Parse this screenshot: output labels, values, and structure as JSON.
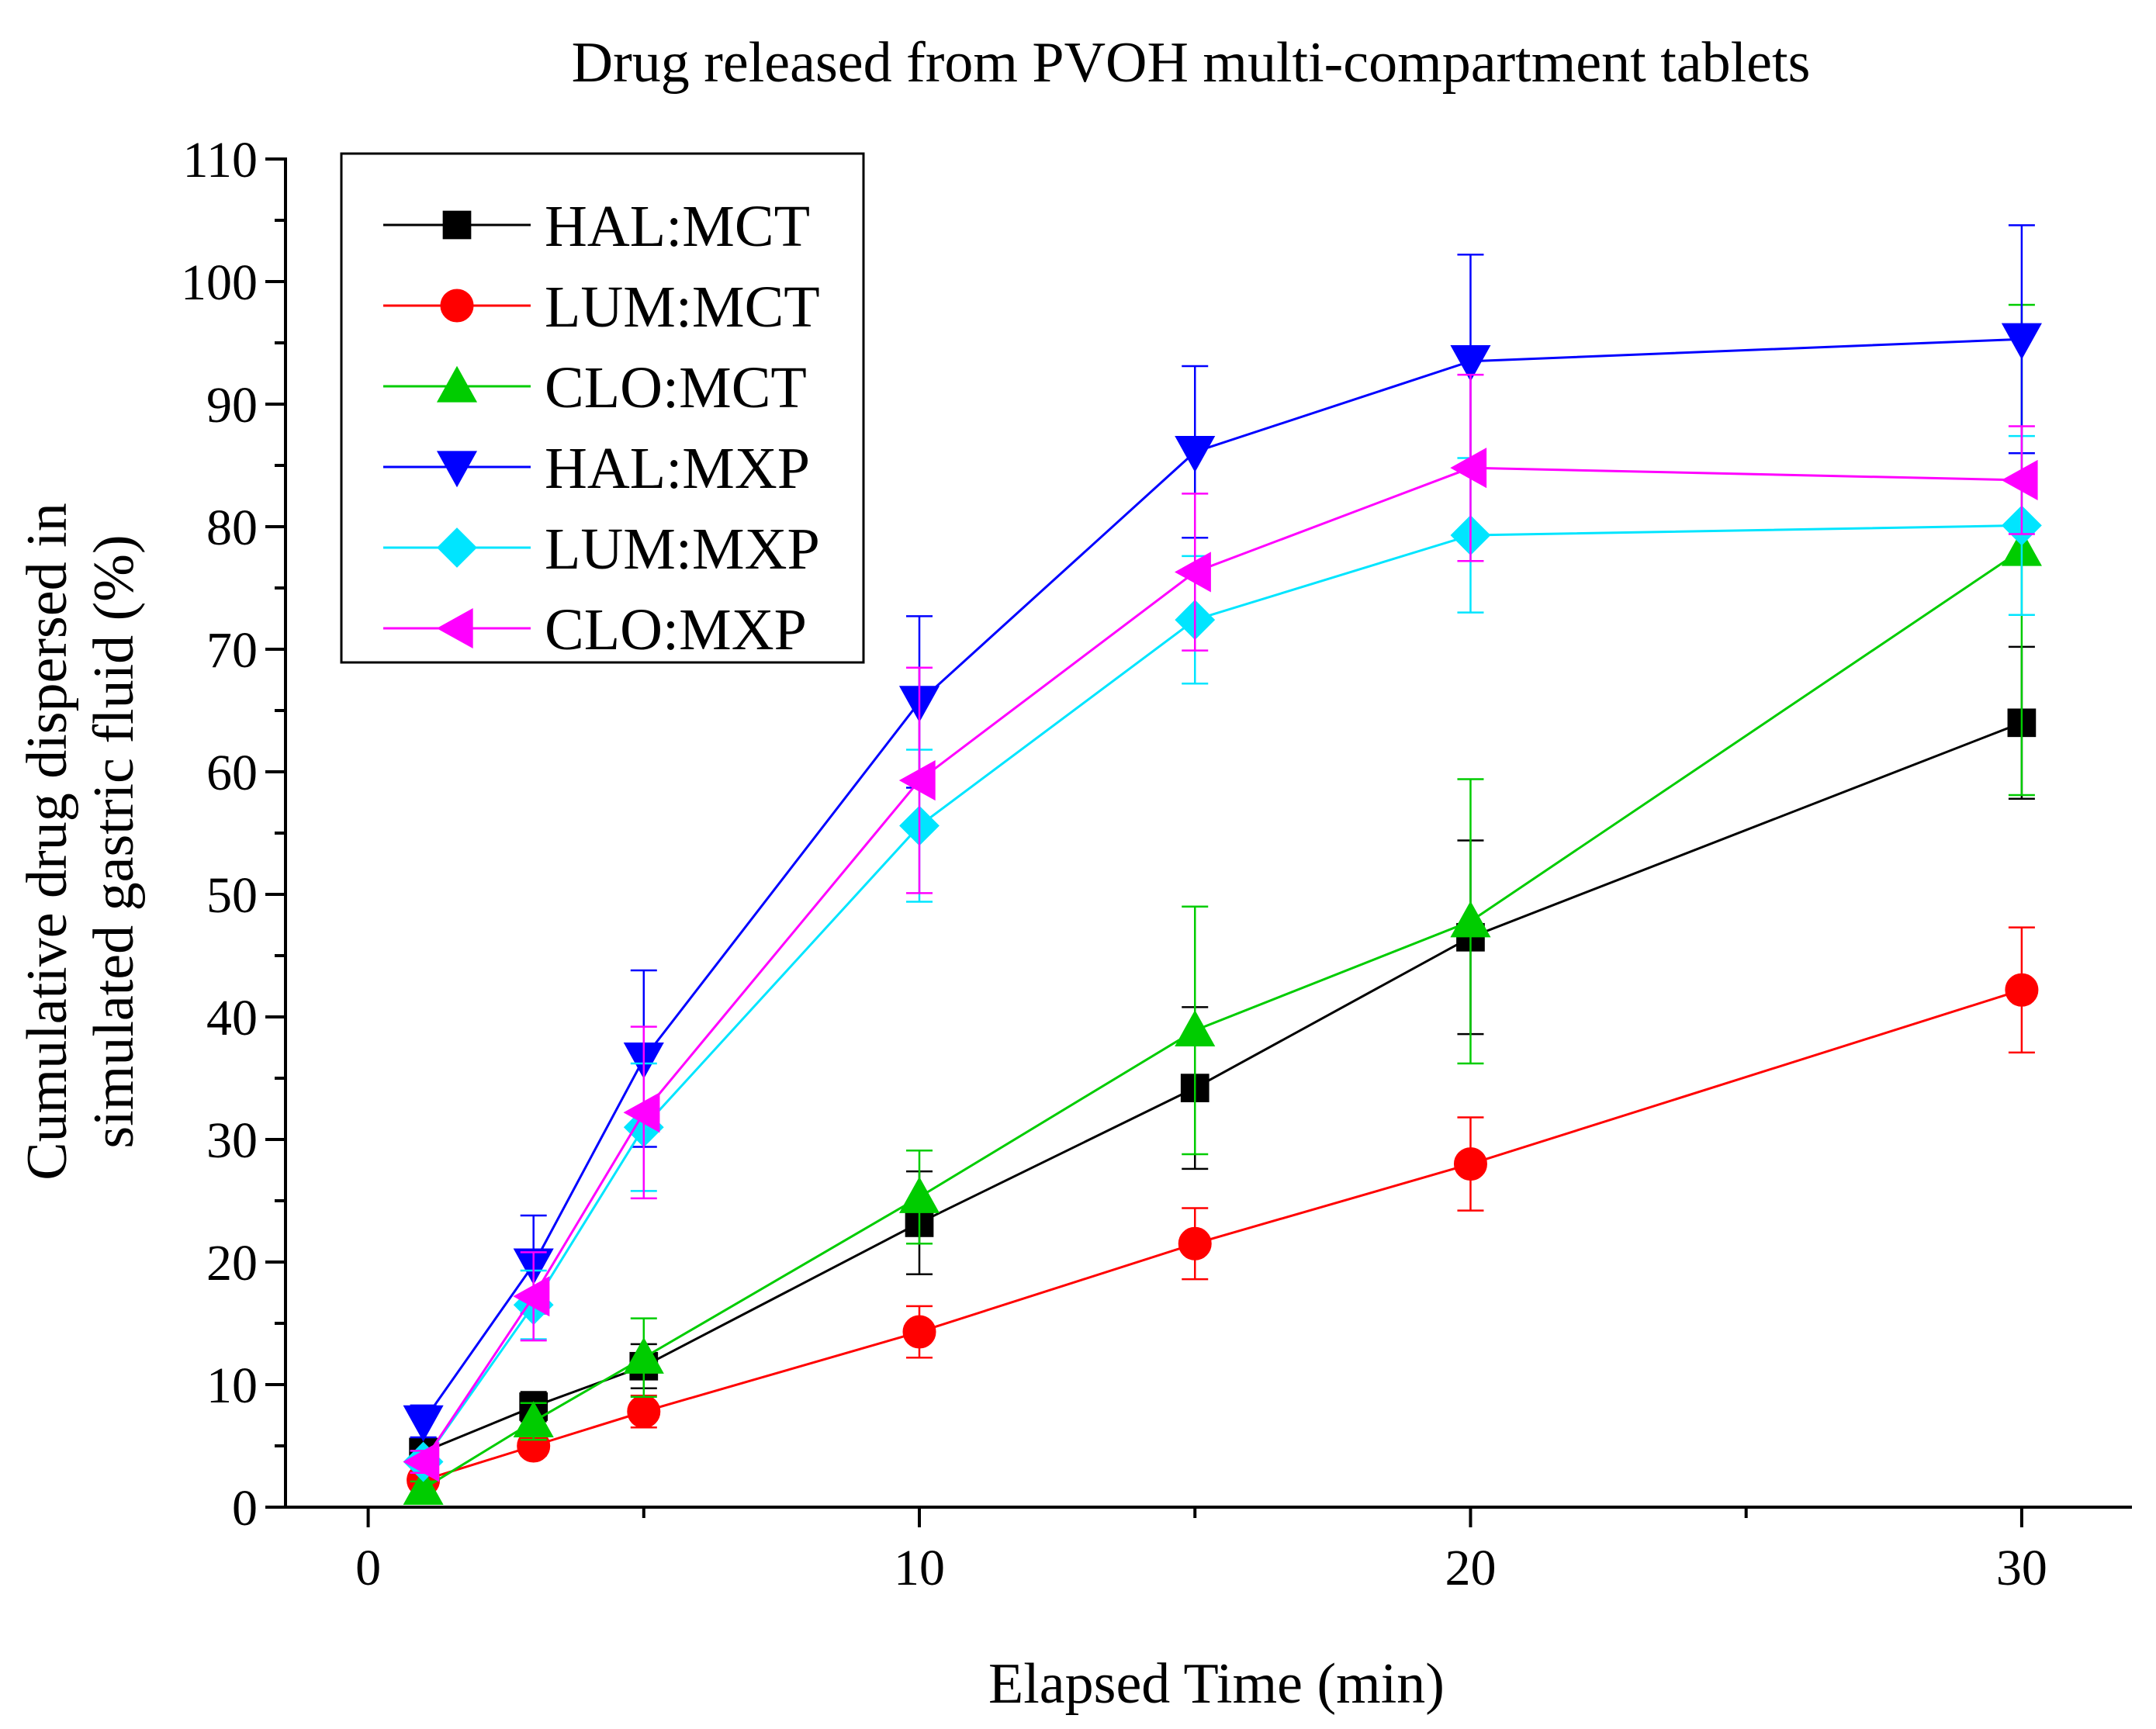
{
  "chart_data": {
    "type": "line",
    "title": "Drug released from PVOH multi-compartment tablets",
    "xlabel": "Elapsed Time (min)",
    "ylabel_lines": [
      "Cumulative drug dispersed in",
      "simulated gastric fluid (%)"
    ],
    "xlim": [
      -1.5,
      32
    ],
    "ylim": [
      0,
      110
    ],
    "x_ticks": [
      0,
      10,
      20,
      30
    ],
    "x_minor_ticks": [
      5,
      15,
      25
    ],
    "y_ticks": [
      0,
      10,
      20,
      30,
      40,
      50,
      60,
      70,
      80,
      90,
      100,
      110
    ],
    "y_minor_ticks": [
      5,
      15,
      25,
      35,
      45,
      55,
      65,
      75,
      85,
      95,
      105
    ],
    "legend_position": "top-left",
    "x": [
      1,
      3,
      5,
      10,
      15,
      20,
      30
    ],
    "series": [
      {
        "name": "HAL:MCT",
        "color": "#000000",
        "marker": "square",
        "values": [
          4.5,
          8.2,
          11.5,
          23.2,
          34.2,
          46.5,
          64.0
        ],
        "errors": [
          0.8,
          1.2,
          1.8,
          4.2,
          6.6,
          7.9,
          6.2
        ]
      },
      {
        "name": "LUM:MCT",
        "color": "#ff0000",
        "marker": "circle",
        "values": [
          2.2,
          5.0,
          7.8,
          14.3,
          21.5,
          28.0,
          42.2
        ],
        "errors": [
          0.5,
          0.8,
          1.3,
          2.1,
          2.9,
          3.8,
          5.1
        ]
      },
      {
        "name": "CLO:MCT",
        "color": "#00cc00",
        "marker": "triangle-up",
        "values": [
          1.5,
          7.0,
          12.2,
          25.3,
          38.9,
          47.8,
          78.1
        ],
        "errors": [
          0.6,
          1.5,
          3.2,
          3.8,
          10.1,
          11.6,
          20.0
        ]
      },
      {
        "name": "HAL:MXP",
        "color": "#0000ff",
        "marker": "triangle-down",
        "values": [
          7.0,
          19.8,
          36.6,
          65.7,
          86.1,
          93.5,
          95.3
        ],
        "errors": [
          1.3,
          4.0,
          7.2,
          7.0,
          7.0,
          8.7,
          9.3
        ]
      },
      {
        "name": "LUM:MXP",
        "color": "#00e5ff",
        "marker": "diamond",
        "values": [
          3.7,
          16.5,
          31.0,
          55.6,
          72.4,
          79.3,
          80.1
        ],
        "errors": [
          0.9,
          2.8,
          5.2,
          6.2,
          5.2,
          6.3,
          7.3
        ]
      },
      {
        "name": "CLO:MXP",
        "color": "#ff00ff",
        "marker": "triangle-left",
        "values": [
          3.7,
          17.2,
          32.2,
          59.3,
          76.3,
          84.8,
          83.8
        ],
        "errors": [
          0.9,
          3.6,
          7.0,
          9.2,
          6.4,
          7.6,
          4.4
        ]
      }
    ]
  }
}
